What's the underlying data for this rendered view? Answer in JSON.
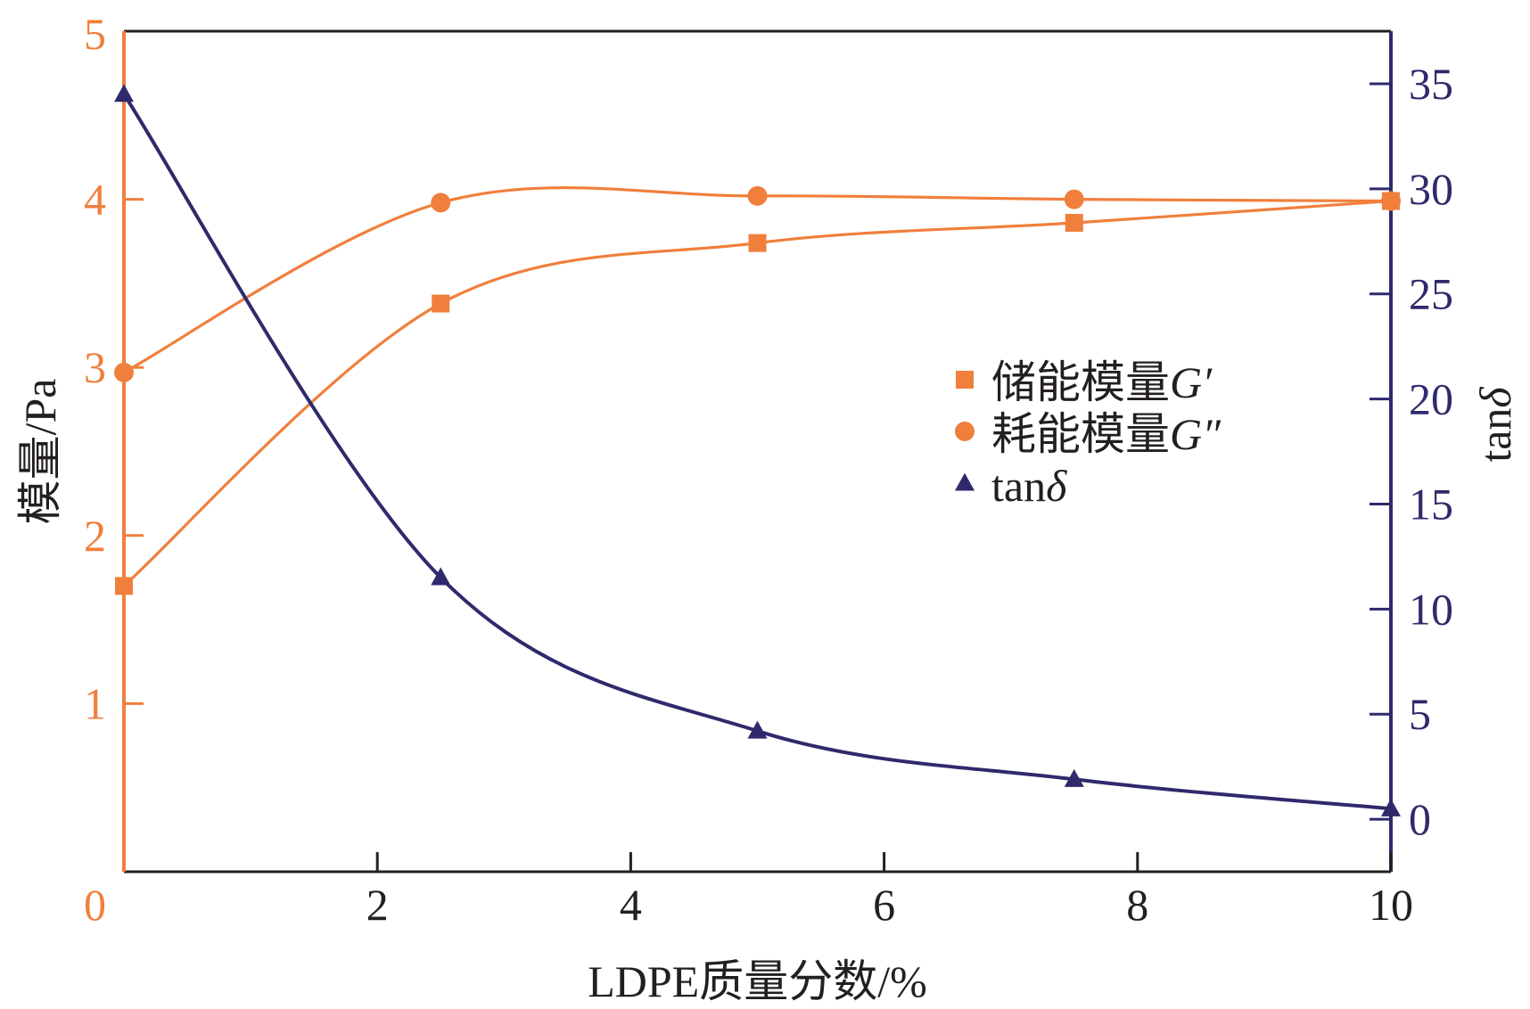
{
  "chart_data": {
    "type": "line",
    "title": "",
    "xlabel": "LDPE质量分数/%",
    "ylabel_left": "模量/Pa",
    "ylabel_right": "tanδ",
    "xlim": [
      0,
      10
    ],
    "ylim_left": [
      0,
      5
    ],
    "ylim_right": [
      -2.5,
      37.5
    ],
    "x_ticks": [
      2,
      4,
      6,
      8,
      10
    ],
    "x_tick_labels": [
      "2",
      "4",
      "6",
      "8",
      "10"
    ],
    "y_left_ticks": [
      0,
      1,
      2,
      3,
      4,
      5
    ],
    "y_left_tick_labels": [
      "0",
      "1",
      "2",
      "3",
      "4",
      "5"
    ],
    "y_right_ticks": [
      0,
      5,
      10,
      15,
      20,
      25,
      30,
      35
    ],
    "y_right_tick_labels": [
      "0",
      "5",
      "10",
      "15",
      "20",
      "25",
      "30",
      "35"
    ],
    "colors": {
      "left_axis": "#f07f3c",
      "right_axis": "#2e2a6b",
      "frame": "#231f20",
      "storage": "#f07f3c",
      "loss": "#f07f3c",
      "tan": "#2e2a6b"
    },
    "series": [
      {
        "name": "储能模量",
        "symbol_label": "G′",
        "axis": "left",
        "marker": "square",
        "x": [
          0,
          2.5,
          5,
          7.5,
          10
        ],
        "y": [
          1.7,
          3.38,
          3.74,
          3.86,
          3.99
        ]
      },
      {
        "name": "耗能模量",
        "symbol_label": "G″",
        "axis": "left",
        "marker": "circle",
        "x": [
          0,
          2.5,
          5,
          7.5,
          10
        ],
        "y": [
          2.97,
          3.98,
          4.02,
          4.0,
          3.99
        ]
      },
      {
        "name": "tan",
        "symbol_label": "δ",
        "axis": "right",
        "marker": "triangle",
        "x": [
          0,
          2.5,
          5,
          7.5,
          10
        ],
        "y": [
          34.5,
          11.5,
          4.2,
          1.9,
          0.5
        ]
      }
    ],
    "legend": {
      "placement": "center-right",
      "entries": [
        {
          "name": "储能模量",
          "symbol": "G′"
        },
        {
          "name": "耗能模量",
          "symbol": "G″"
        },
        {
          "name": "tan",
          "symbol": "δ"
        }
      ]
    }
  }
}
